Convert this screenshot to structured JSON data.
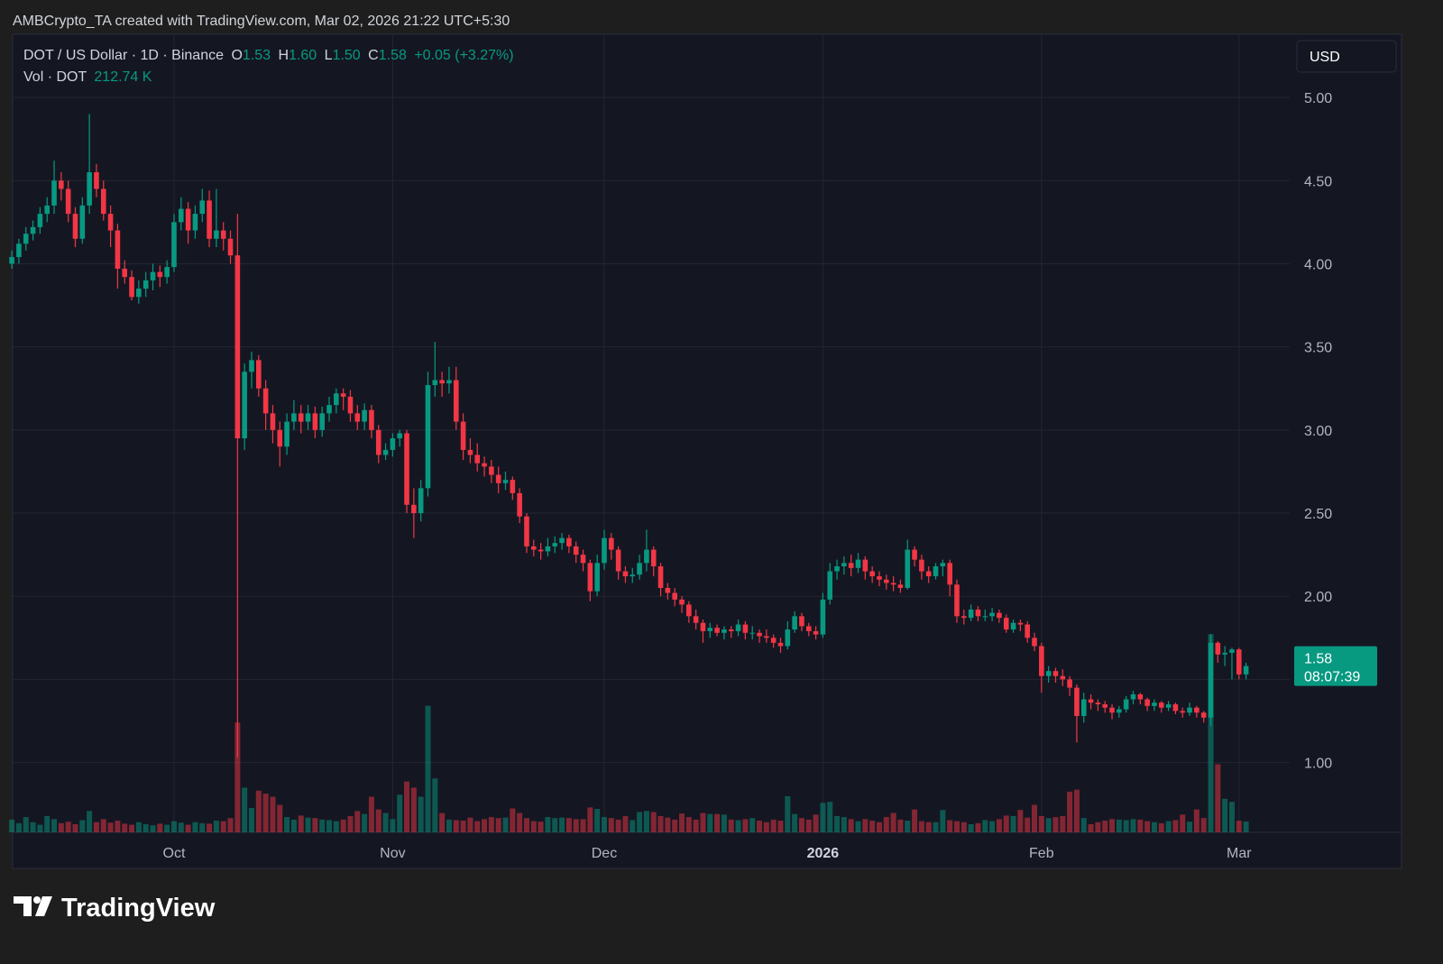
{
  "chart_data": {
    "type": "candlestick",
    "attribution": "AMBCrypto_TA created with TradingView.com, Mar 02, 2026 21:22 UTC+5:30",
    "title": "DOT / US Dollar · 1D · Binance",
    "ohlc_names": [
      "O",
      "H",
      "L",
      "C"
    ],
    "last_candle_labels": [
      "1.53",
      "1.60",
      "1.50",
      "1.58"
    ],
    "change_label": "+0.05 (+3.27%)",
    "volume_title": "Vol · DOT",
    "last_volume_label": "212.74 K",
    "currency": "USD",
    "price_label": "1.58",
    "countdown": "08:07:39",
    "brand": "TradingView",
    "colors": {
      "up": "#089981",
      "down": "#f23645"
    },
    "grid": true,
    "ylim": [
      0.58,
      5.38
    ],
    "yticks": [
      {
        "value": 1,
        "label": "1.00"
      },
      {
        "value": 1.5,
        "label": "1.50"
      },
      {
        "value": 2,
        "label": "2.00"
      },
      {
        "value": 2.5,
        "label": "2.50"
      },
      {
        "value": 3,
        "label": "3.00"
      },
      {
        "value": 3.5,
        "label": "3.50"
      },
      {
        "value": 4,
        "label": "4.00"
      },
      {
        "value": 4.5,
        "label": "4.50"
      },
      {
        "value": 5,
        "label": "5.00"
      }
    ],
    "volume_lim": [
      0,
      15700000
    ],
    "categories": [
      null,
      null,
      null,
      null,
      null,
      null,
      null,
      null,
      null,
      null,
      null,
      null,
      null,
      null,
      null,
      null,
      null,
      null,
      null,
      null,
      null,
      null,
      null,
      "Oct",
      null,
      null,
      null,
      null,
      null,
      null,
      null,
      null,
      null,
      null,
      null,
      null,
      null,
      null,
      null,
      null,
      null,
      null,
      null,
      null,
      null,
      null,
      null,
      null,
      null,
      null,
      null,
      null,
      null,
      null,
      "Nov",
      null,
      null,
      null,
      null,
      null,
      null,
      null,
      null,
      null,
      null,
      null,
      null,
      null,
      null,
      null,
      null,
      null,
      null,
      null,
      null,
      null,
      null,
      null,
      null,
      null,
      null,
      null,
      null,
      null,
      "Dec",
      null,
      null,
      null,
      null,
      null,
      null,
      null,
      null,
      null,
      null,
      null,
      null,
      null,
      null,
      null,
      null,
      null,
      null,
      null,
      null,
      null,
      null,
      null,
      null,
      null,
      null,
      null,
      null,
      null,
      null,
      "2026",
      null,
      null,
      null,
      null,
      null,
      null,
      null,
      null,
      null,
      null,
      null,
      null,
      null,
      null,
      null,
      null,
      null,
      null,
      null,
      null,
      null,
      null,
      null,
      null,
      null,
      null,
      null,
      null,
      null,
      null,
      "Feb",
      null,
      null,
      null,
      null,
      null,
      null,
      null,
      null,
      null,
      null,
      null,
      null,
      null,
      null,
      null,
      null,
      null,
      null,
      null,
      null,
      null,
      null,
      null,
      null,
      null,
      null,
      null,
      "Mar",
      null
    ],
    "candles": [
      [
        4.0,
        4.08,
        3.97,
        4.04
      ],
      [
        4.04,
        4.15,
        4.0,
        4.12
      ],
      [
        4.12,
        4.22,
        4.08,
        4.18
      ],
      [
        4.18,
        4.26,
        4.14,
        4.22
      ],
      [
        4.22,
        4.34,
        4.18,
        4.3
      ],
      [
        4.3,
        4.4,
        4.25,
        4.35
      ],
      [
        4.35,
        4.62,
        4.3,
        4.5
      ],
      [
        4.5,
        4.55,
        4.38,
        4.45
      ],
      [
        4.45,
        4.5,
        4.25,
        4.3
      ],
      [
        4.3,
        4.34,
        4.1,
        4.15
      ],
      [
        4.15,
        4.4,
        4.12,
        4.35
      ],
      [
        4.35,
        4.9,
        4.3,
        4.55
      ],
      [
        4.55,
        4.6,
        4.4,
        4.45
      ],
      [
        4.45,
        4.5,
        4.26,
        4.3
      ],
      [
        4.3,
        4.35,
        4.1,
        4.2
      ],
      [
        4.2,
        4.24,
        3.85,
        3.97
      ],
      [
        3.97,
        4.02,
        3.88,
        3.92
      ],
      [
        3.92,
        3.96,
        3.78,
        3.8
      ],
      [
        3.8,
        3.9,
        3.76,
        3.85
      ],
      [
        3.85,
        3.95,
        3.8,
        3.9
      ],
      [
        3.9,
        4.0,
        3.84,
        3.95
      ],
      [
        3.95,
        3.99,
        3.86,
        3.92
      ],
      [
        3.92,
        4.02,
        3.88,
        3.98
      ],
      [
        3.98,
        4.3,
        3.95,
        4.25
      ],
      [
        4.25,
        4.4,
        4.2,
        4.33
      ],
      [
        4.33,
        4.37,
        4.12,
        4.2
      ],
      [
        4.2,
        4.35,
        4.15,
        4.3
      ],
      [
        4.3,
        4.45,
        4.25,
        4.38
      ],
      [
        4.38,
        4.44,
        4.1,
        4.15
      ],
      [
        4.15,
        4.45,
        4.1,
        4.2
      ],
      [
        4.2,
        4.25,
        4.08,
        4.15
      ],
      [
        4.15,
        4.2,
        4.0,
        4.05
      ],
      [
        4.05,
        4.3,
        1.03,
        2.95
      ],
      [
        2.95,
        3.4,
        2.88,
        3.35
      ],
      [
        3.35,
        3.47,
        3.25,
        3.42
      ],
      [
        3.42,
        3.45,
        3.2,
        3.25
      ],
      [
        3.25,
        3.3,
        3.0,
        3.1
      ],
      [
        3.1,
        3.15,
        2.92,
        3.0
      ],
      [
        3.0,
        3.05,
        2.78,
        2.9
      ],
      [
        2.9,
        3.1,
        2.85,
        3.05
      ],
      [
        3.05,
        3.18,
        3.0,
        3.1
      ],
      [
        3.1,
        3.15,
        2.98,
        3.05
      ],
      [
        3.05,
        3.15,
        3.0,
        3.1
      ],
      [
        3.1,
        3.14,
        2.95,
        3.0
      ],
      [
        3.0,
        3.14,
        2.96,
        3.1
      ],
      [
        3.1,
        3.2,
        3.05,
        3.15
      ],
      [
        3.15,
        3.25,
        3.1,
        3.22
      ],
      [
        3.22,
        3.25,
        3.12,
        3.2
      ],
      [
        3.2,
        3.24,
        3.05,
        3.1
      ],
      [
        3.1,
        3.15,
        3.0,
        3.05
      ],
      [
        3.05,
        3.16,
        3.0,
        3.12
      ],
      [
        3.12,
        3.15,
        2.95,
        3.0
      ],
      [
        3.0,
        3.03,
        2.8,
        2.85
      ],
      [
        2.85,
        2.92,
        2.82,
        2.88
      ],
      [
        2.88,
        2.98,
        2.84,
        2.95
      ],
      [
        2.95,
        3.0,
        2.9,
        2.98
      ],
      [
        2.98,
        3.0,
        2.5,
        2.55
      ],
      [
        2.55,
        2.65,
        2.35,
        2.5
      ],
      [
        2.5,
        2.7,
        2.45,
        2.65
      ],
      [
        2.65,
        3.35,
        2.6,
        3.27
      ],
      [
        3.27,
        3.53,
        3.2,
        3.3
      ],
      [
        3.3,
        3.35,
        3.2,
        3.28
      ],
      [
        3.28,
        3.38,
        3.22,
        3.3
      ],
      [
        3.3,
        3.38,
        3.0,
        3.05
      ],
      [
        3.05,
        3.1,
        2.82,
        2.88
      ],
      [
        2.88,
        2.95,
        2.8,
        2.85
      ],
      [
        2.85,
        2.92,
        2.75,
        2.8
      ],
      [
        2.8,
        2.84,
        2.72,
        2.78
      ],
      [
        2.78,
        2.82,
        2.68,
        2.73
      ],
      [
        2.73,
        2.78,
        2.62,
        2.68
      ],
      [
        2.68,
        2.75,
        2.64,
        2.7
      ],
      [
        2.7,
        2.72,
        2.58,
        2.62
      ],
      [
        2.62,
        2.65,
        2.44,
        2.48
      ],
      [
        2.48,
        2.5,
        2.26,
        2.3
      ],
      [
        2.3,
        2.34,
        2.24,
        2.28
      ],
      [
        2.28,
        2.32,
        2.22,
        2.27
      ],
      [
        2.27,
        2.35,
        2.24,
        2.3
      ],
      [
        2.3,
        2.36,
        2.26,
        2.32
      ],
      [
        2.32,
        2.38,
        2.28,
        2.35
      ],
      [
        2.35,
        2.37,
        2.26,
        2.3
      ],
      [
        2.3,
        2.33,
        2.2,
        2.25
      ],
      [
        2.25,
        2.28,
        2.15,
        2.2
      ],
      [
        2.2,
        2.22,
        1.97,
        2.03
      ],
      [
        2.03,
        2.25,
        2.0,
        2.2
      ],
      [
        2.2,
        2.4,
        2.16,
        2.35
      ],
      [
        2.35,
        2.38,
        2.22,
        2.28
      ],
      [
        2.28,
        2.3,
        2.1,
        2.15
      ],
      [
        2.15,
        2.18,
        2.08,
        2.12
      ],
      [
        2.12,
        2.17,
        2.08,
        2.13
      ],
      [
        2.13,
        2.25,
        2.1,
        2.2
      ],
      [
        2.2,
        2.4,
        2.15,
        2.28
      ],
      [
        2.28,
        2.3,
        2.12,
        2.18
      ],
      [
        2.18,
        2.2,
        2.0,
        2.05
      ],
      [
        2.05,
        2.08,
        1.98,
        2.02
      ],
      [
        2.02,
        2.05,
        1.94,
        1.98
      ],
      [
        1.98,
        2.0,
        1.9,
        1.95
      ],
      [
        1.95,
        1.97,
        1.84,
        1.88
      ],
      [
        1.88,
        1.92,
        1.8,
        1.84
      ],
      [
        1.84,
        1.86,
        1.72,
        1.79
      ],
      [
        1.79,
        1.84,
        1.75,
        1.81
      ],
      [
        1.81,
        1.83,
        1.76,
        1.78
      ],
      [
        1.78,
        1.82,
        1.74,
        1.8
      ],
      [
        1.8,
        1.82,
        1.75,
        1.79
      ],
      [
        1.79,
        1.86,
        1.76,
        1.83
      ],
      [
        1.83,
        1.85,
        1.74,
        1.78
      ],
      [
        1.78,
        1.82,
        1.74,
        1.78
      ],
      [
        1.78,
        1.8,
        1.72,
        1.76
      ],
      [
        1.76,
        1.8,
        1.72,
        1.75
      ],
      [
        1.75,
        1.77,
        1.69,
        1.72
      ],
      [
        1.72,
        1.75,
        1.66,
        1.7
      ],
      [
        1.7,
        1.85,
        1.68,
        1.8
      ],
      [
        1.8,
        1.91,
        1.78,
        1.88
      ],
      [
        1.88,
        1.9,
        1.79,
        1.82
      ],
      [
        1.82,
        1.84,
        1.76,
        1.79
      ],
      [
        1.79,
        1.82,
        1.74,
        1.77
      ],
      [
        1.77,
        2.02,
        1.75,
        1.98
      ],
      [
        1.98,
        2.2,
        1.95,
        2.15
      ],
      [
        2.15,
        2.22,
        2.1,
        2.18
      ],
      [
        2.18,
        2.24,
        2.13,
        2.2
      ],
      [
        2.2,
        2.25,
        2.12,
        2.17
      ],
      [
        2.17,
        2.26,
        2.14,
        2.22
      ],
      [
        2.22,
        2.24,
        2.1,
        2.15
      ],
      [
        2.15,
        2.18,
        2.08,
        2.12
      ],
      [
        2.12,
        2.15,
        2.06,
        2.1
      ],
      [
        2.1,
        2.13,
        2.04,
        2.08
      ],
      [
        2.08,
        2.12,
        2.03,
        2.07
      ],
      [
        2.07,
        2.1,
        2.02,
        2.05
      ],
      [
        2.05,
        2.34,
        2.04,
        2.28
      ],
      [
        2.28,
        2.3,
        2.18,
        2.22
      ],
      [
        2.22,
        2.25,
        2.1,
        2.15
      ],
      [
        2.15,
        2.18,
        2.08,
        2.12
      ],
      [
        2.12,
        2.2,
        2.1,
        2.18
      ],
      [
        2.18,
        2.22,
        2.12,
        2.2
      ],
      [
        2.2,
        2.22,
        2.0,
        2.07
      ],
      [
        2.07,
        2.1,
        1.84,
        1.88
      ],
      [
        1.88,
        1.92,
        1.83,
        1.87
      ],
      [
        1.87,
        1.95,
        1.85,
        1.92
      ],
      [
        1.92,
        1.94,
        1.85,
        1.88
      ],
      [
        1.88,
        1.92,
        1.85,
        1.88
      ],
      [
        1.88,
        1.93,
        1.85,
        1.9
      ],
      [
        1.9,
        1.92,
        1.84,
        1.87
      ],
      [
        1.87,
        1.89,
        1.78,
        1.8
      ],
      [
        1.8,
        1.86,
        1.78,
        1.84
      ],
      [
        1.84,
        1.86,
        1.79,
        1.83
      ],
      [
        1.83,
        1.85,
        1.72,
        1.75
      ],
      [
        1.75,
        1.78,
        1.67,
        1.7
      ],
      [
        1.7,
        1.72,
        1.42,
        1.52
      ],
      [
        1.52,
        1.58,
        1.48,
        1.55
      ],
      [
        1.55,
        1.57,
        1.48,
        1.52
      ],
      [
        1.52,
        1.56,
        1.46,
        1.5
      ],
      [
        1.5,
        1.52,
        1.4,
        1.45
      ],
      [
        1.45,
        1.47,
        1.12,
        1.28
      ],
      [
        1.28,
        1.42,
        1.24,
        1.38
      ],
      [
        1.38,
        1.41,
        1.32,
        1.36
      ],
      [
        1.36,
        1.38,
        1.31,
        1.35
      ],
      [
        1.35,
        1.37,
        1.3,
        1.33
      ],
      [
        1.33,
        1.35,
        1.26,
        1.3
      ],
      [
        1.3,
        1.34,
        1.27,
        1.32
      ],
      [
        1.32,
        1.4,
        1.3,
        1.38
      ],
      [
        1.38,
        1.43,
        1.35,
        1.41
      ],
      [
        1.41,
        1.42,
        1.35,
        1.38
      ],
      [
        1.38,
        1.39,
        1.31,
        1.34
      ],
      [
        1.34,
        1.38,
        1.31,
        1.36
      ],
      [
        1.36,
        1.37,
        1.3,
        1.33
      ],
      [
        1.33,
        1.37,
        1.31,
        1.35
      ],
      [
        1.35,
        1.36,
        1.29,
        1.31
      ],
      [
        1.31,
        1.33,
        1.27,
        1.3
      ],
      [
        1.3,
        1.36,
        1.28,
        1.33
      ],
      [
        1.33,
        1.34,
        1.27,
        1.3
      ],
      [
        1.3,
        1.31,
        1.24,
        1.27
      ],
      [
        1.27,
        1.77,
        1.22,
        1.72
      ],
      [
        1.72,
        1.73,
        1.6,
        1.65
      ],
      [
        1.65,
        1.7,
        1.58,
        1.66
      ],
      [
        1.66,
        1.69,
        1.5,
        1.68
      ],
      [
        1.68,
        1.69,
        1.5,
        1.53
      ],
      [
        1.53,
        1.6,
        1.5,
        1.58
      ]
    ],
    "volume": [
      250000,
      180000,
      300000,
      200000,
      150000,
      320000,
      260000,
      180000,
      210000,
      160000,
      240000,
      420000,
      200000,
      260000,
      190000,
      230000,
      170000,
      150000,
      200000,
      160000,
      140000,
      170000,
      150000,
      220000,
      190000,
      150000,
      200000,
      180000,
      170000,
      230000,
      220000,
      280000,
      2160000,
      880000,
      480000,
      820000,
      760000,
      700000,
      540000,
      300000,
      250000,
      330000,
      290000,
      280000,
      250000,
      240000,
      220000,
      250000,
      320000,
      420000,
      360000,
      700000,
      450000,
      380000,
      260000,
      740000,
      1000000,
      880000,
      700000,
      2490000,
      1060000,
      380000,
      250000,
      240000,
      230000,
      290000,
      220000,
      260000,
      300000,
      280000,
      290000,
      470000,
      380000,
      280000,
      220000,
      210000,
      300000,
      280000,
      290000,
      280000,
      260000,
      260000,
      490000,
      460000,
      300000,
      280000,
      250000,
      320000,
      240000,
      400000,
      420000,
      400000,
      320000,
      290000,
      250000,
      370000,
      300000,
      250000,
      380000,
      360000,
      360000,
      350000,
      250000,
      240000,
      260000,
      280000,
      230000,
      200000,
      250000,
      230000,
      710000,
      360000,
      280000,
      250000,
      350000,
      580000,
      600000,
      320000,
      300000,
      260000,
      220000,
      260000,
      230000,
      200000,
      300000,
      380000,
      250000,
      230000,
      450000,
      220000,
      200000,
      200000,
      440000,
      240000,
      220000,
      200000,
      160000,
      180000,
      240000,
      220000,
      260000,
      330000,
      320000,
      440000,
      290000,
      540000,
      320000,
      280000,
      300000,
      320000,
      800000,
      840000,
      280000,
      160000,
      200000,
      230000,
      260000,
      250000,
      240000,
      260000,
      250000,
      220000,
      200000,
      180000,
      220000,
      240000,
      350000,
      210000,
      450000,
      280000,
      3900000,
      1340000,
      660000,
      600000,
      230000,
      212740
    ]
  }
}
